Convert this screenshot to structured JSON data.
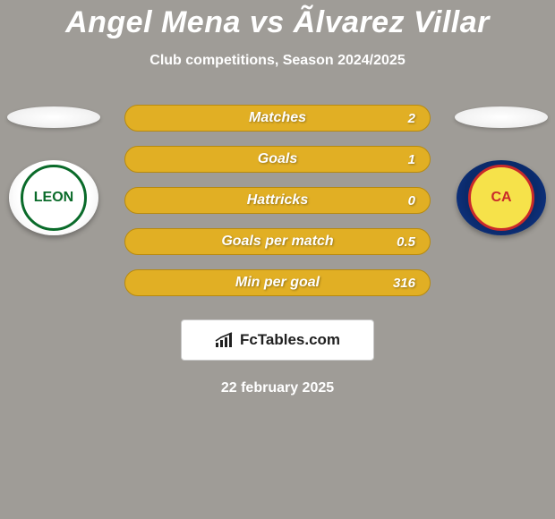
{
  "title": "Angel Mena vs Ãlvarez Villar",
  "subtitle": "Club competitions, Season 2024/2025",
  "date": "22 february 2025",
  "brand": {
    "label": "FcTables.com",
    "box_bg": "#ffffff",
    "box_border": "#c8c8c8",
    "text_color": "#202020",
    "icon_color": "#202020"
  },
  "colors": {
    "background": "#9f9c97",
    "title_color": "#ffffff",
    "subtitle_color": "#ffffff",
    "date_color": "#ffffff",
    "bar_bg": "#e1af24",
    "bar_border": "#b78a10",
    "bar_label_color": "#ffffff",
    "bar_value_color": "#ffffff"
  },
  "stats": {
    "rows": [
      {
        "label": "Matches",
        "value": "2"
      },
      {
        "label": "Goals",
        "value": "1"
      },
      {
        "label": "Hattricks",
        "value": "0"
      },
      {
        "label": "Goals per match",
        "value": "0.5"
      },
      {
        "label": "Min per goal",
        "value": "316"
      }
    ]
  },
  "left": {
    "club_name": "LEON",
    "badge_bg": "#ffffff",
    "badge_ring": "#e8e8e8",
    "logo_bg": "#ffffff",
    "logo_border": "#0a6b2a",
    "logo_text_color": "#0a6b2a"
  },
  "right": {
    "club_name": "CA",
    "badge_bg": "#0a2a6b",
    "badge_ring": "#12398f",
    "logo_bg": "#f6e24a",
    "logo_border": "#c92a2a",
    "logo_text_color": "#c92a2a"
  }
}
